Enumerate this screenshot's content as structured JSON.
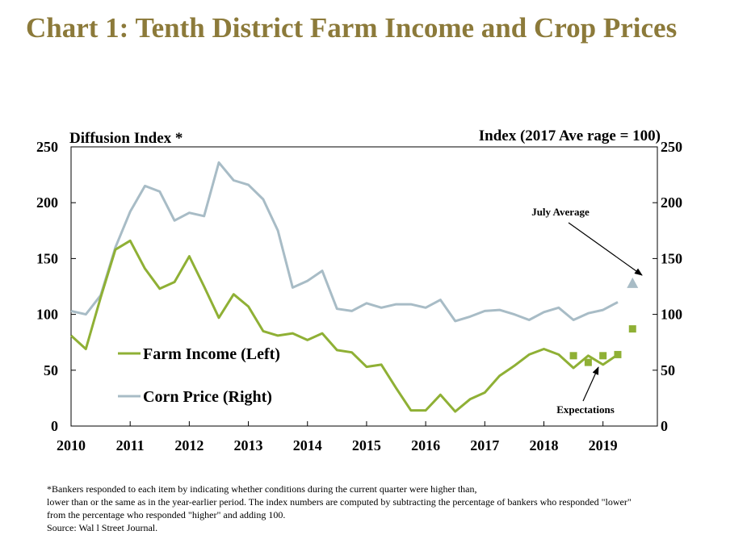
{
  "title": "Chart 1: Tenth District Farm Income and Crop Prices",
  "chart_data": {
    "type": "line",
    "left_axis_label": "Diffusion Index *",
    "right_axis_label": "Index (2017 Ave rage = 100)",
    "ylim": [
      0,
      250
    ],
    "yticks": [
      0,
      50,
      100,
      150,
      200,
      250
    ],
    "xlim": [
      2010,
      2019.92
    ],
    "xticks": [
      "2010",
      "2011",
      "2012",
      "2013",
      "2014",
      "2015",
      "2016",
      "2017",
      "2018",
      "2019"
    ],
    "series": [
      {
        "name": "Farm Income (Left)",
        "color": "#8fb035",
        "x": [
          2010.0,
          2010.25,
          2010.5,
          2010.75,
          2011.0,
          2011.25,
          2011.5,
          2011.75,
          2012.0,
          2012.25,
          2012.5,
          2012.75,
          2013.0,
          2013.25,
          2013.5,
          2013.75,
          2014.0,
          2014.25,
          2014.5,
          2014.75,
          2015.0,
          2015.25,
          2015.5,
          2015.75,
          2016.0,
          2016.25,
          2016.5,
          2016.75,
          2017.0,
          2017.25,
          2017.5,
          2017.75,
          2018.0,
          2018.25,
          2018.5,
          2018.75,
          2019.0,
          2019.25
        ],
        "values": [
          81,
          69,
          115,
          158,
          166,
          141,
          123,
          129,
          152,
          125,
          97,
          118,
          107,
          85,
          81,
          83,
          77,
          83,
          68,
          66,
          53,
          55,
          34,
          14,
          14,
          28,
          13,
          24,
          30,
          45,
          54,
          64,
          69,
          64,
          52,
          63,
          55,
          64
        ]
      },
      {
        "name": "Corn Price (Right)",
        "color": "#a8bcc6",
        "x": [
          2010.0,
          2010.25,
          2010.5,
          2010.75,
          2011.0,
          2011.25,
          2011.5,
          2011.75,
          2012.0,
          2012.25,
          2012.5,
          2012.75,
          2013.0,
          2013.25,
          2013.5,
          2013.75,
          2014.0,
          2014.25,
          2014.5,
          2014.75,
          2015.0,
          2015.25,
          2015.5,
          2015.75,
          2016.0,
          2016.25,
          2016.5,
          2016.75,
          2017.0,
          2017.25,
          2017.5,
          2017.75,
          2018.0,
          2018.25,
          2018.5,
          2018.75,
          2019.0,
          2019.25
        ],
        "values": [
          103,
          100,
          117,
          160,
          192,
          215,
          210,
          184,
          191,
          188,
          236,
          220,
          216,
          203,
          175,
          124,
          130,
          139,
          105,
          103,
          110,
          106,
          109,
          109,
          106,
          113,
          94,
          98,
          103,
          104,
          100,
          95,
          102,
          106,
          95,
          101,
          104,
          111
        ]
      },
      {
        "name": "Expectations",
        "type": "scatter",
        "color": "#8fb035",
        "marker": "square",
        "x": [
          2018.5,
          2018.75,
          2019.0,
          2019.25,
          2019.5
        ],
        "values": [
          63,
          57,
          63,
          64,
          87
        ]
      },
      {
        "name": "July Average",
        "type": "scatter",
        "color": "#a8bcc6",
        "marker": "triangle",
        "x": [
          2019.5
        ],
        "values": [
          128
        ]
      }
    ],
    "annotations": {
      "july_average": "July Average",
      "expectations": "Expectations"
    },
    "grid": false,
    "legend_position": "inside-lower-left"
  },
  "footnote": {
    "line1": "*Bankers responded to each item by indicating whether conditions during the current quarter were higher than,",
    "line2": "lower than or the same as in the year-earlier period.  The index numbers are computed by subtracting the percentage of bankers who responded \"lower\"",
    "line3": "from the percentage who responded \"higher\" and adding 100.",
    "source": "Source: Wal l Street Journal."
  }
}
